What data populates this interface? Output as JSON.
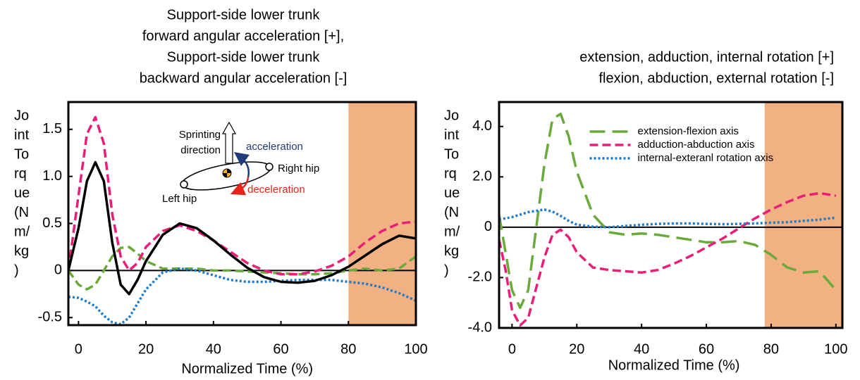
{
  "chart_data": [
    {
      "type": "line",
      "title": [
        "Support-side lower trunk",
        "forward angular acceleration [+],",
        "Support-side lower trunk",
        "backward angular acceleration [-]"
      ],
      "ylabel": [
        "Jo",
        "int",
        "To",
        "rq",
        "ue",
        "(N",
        "m/",
        "kg",
        ")"
      ],
      "xlabel": "Normalized Time (%)",
      "xlim": [
        -3,
        100
      ],
      "ylim": [
        -0.58,
        1.79
      ],
      "xticks": [
        0,
        20,
        40,
        60,
        80,
        100
      ],
      "yticks": [
        1.5,
        {
          "value": 1,
          "label": "1.0"
        },
        0.5,
        0,
        -0.5
      ],
      "shaded_xrange": [
        80,
        100
      ],
      "shade_color": "#f2b183",
      "annotations": [
        "Sprinting",
        "direction",
        "acceleration",
        "Right hip",
        "deceleration",
        "Left hip"
      ],
      "x": [
        -3,
        0,
        2.5,
        5,
        7.5,
        10,
        12.5,
        15,
        17.5,
        20,
        25,
        30,
        35,
        40,
        45,
        50,
        55,
        60,
        65,
        70,
        75,
        80,
        85,
        90,
        95,
        100
      ],
      "series": [
        {
          "color": "#6aaa3a",
          "linestyle": "dashed",
          "values": [
            0.0,
            -0.15,
            -0.2,
            -0.15,
            0.0,
            0.15,
            0.24,
            0.25,
            0.18,
            0.1,
            0.02,
            0.02,
            0.02,
            0.0,
            0.0,
            -0.01,
            -0.02,
            -0.03,
            -0.04,
            -0.04,
            -0.03,
            0.0,
            0.02,
            0.0,
            0.02,
            0.15
          ]
        },
        {
          "color": "#1e7bc8",
          "linestyle": "dotted",
          "values": [
            -0.28,
            -0.29,
            -0.33,
            -0.38,
            -0.48,
            -0.55,
            -0.57,
            -0.5,
            -0.35,
            -0.2,
            -0.02,
            0.02,
            0.0,
            -0.05,
            -0.1,
            -0.12,
            -0.12,
            -0.11,
            -0.1,
            -0.1,
            -0.1,
            -0.12,
            -0.14,
            -0.18,
            -0.24,
            -0.32
          ]
        },
        {
          "color": "#e91e78",
          "linestyle": "dashed",
          "values": [
            0.0,
            0.8,
            1.45,
            1.63,
            1.35,
            0.6,
            0.15,
            0.0,
            0.08,
            0.25,
            0.42,
            0.48,
            0.42,
            0.32,
            0.2,
            0.08,
            0.0,
            -0.04,
            -0.04,
            -0.01,
            0.05,
            0.15,
            0.3,
            0.42,
            0.5,
            0.52
          ]
        },
        {
          "color": "#000000",
          "linestyle": "solid",
          "values": [
            0.0,
            0.45,
            0.95,
            1.15,
            0.95,
            0.3,
            -0.15,
            -0.25,
            -0.1,
            0.1,
            0.38,
            0.5,
            0.45,
            0.32,
            0.17,
            0.03,
            -0.07,
            -0.12,
            -0.13,
            -0.11,
            -0.05,
            0.04,
            0.16,
            0.28,
            0.37,
            0.34
          ]
        }
      ]
    },
    {
      "type": "line",
      "title": [
        "extension, adduction,  internal rotation [+]",
        "flexion, abduction, external rotation [-]"
      ],
      "ylabel": [
        "Jo",
        "int",
        "To",
        "rq",
        "ue",
        "(N",
        "m/",
        "kg",
        ")"
      ],
      "xlabel": "Normalized Time (%)",
      "xlim": [
        -4,
        102
      ],
      "ylim": [
        -4,
        4.97
      ],
      "xticks": [
        0,
        20,
        40,
        60,
        80,
        100
      ],
      "yticks": [
        {
          "value": 4,
          "label": "4.0"
        },
        {
          "value": 2,
          "label": "2.0"
        },
        0,
        {
          "value": -2,
          "label": "-2.0"
        },
        {
          "value": -4,
          "label": "-4.0"
        }
      ],
      "shaded_xrange": [
        78,
        102
      ],
      "shade_color": "#f2b183",
      "legend": "upper center",
      "x": [
        -4,
        -2,
        0,
        2.5,
        5,
        7.5,
        10,
        12.5,
        15,
        17.5,
        20,
        25,
        30,
        35,
        40,
        45,
        50,
        55,
        60,
        65,
        70,
        75,
        80,
        85,
        90,
        95,
        100
      ],
      "series": [
        {
          "name": "extension-flexion axis",
          "color": "#6aaa3a",
          "linestyle": "longdash",
          "values": [
            0.5,
            -1.0,
            -2.5,
            -3.2,
            -2.5,
            0.0,
            2.5,
            4.3,
            4.5,
            3.6,
            2.2,
            0.5,
            -0.2,
            -0.3,
            -0.25,
            -0.3,
            -0.4,
            -0.5,
            -0.6,
            -0.6,
            -0.55,
            -0.7,
            -1.1,
            -1.6,
            -1.8,
            -1.75,
            -2.5
          ]
        },
        {
          "name": "adduction-abduction axis",
          "color": "#e91e78",
          "linestyle": "dashed",
          "values": [
            -0.5,
            -1.7,
            -3.3,
            -3.9,
            -3.6,
            -2.4,
            -1.2,
            -0.3,
            -0.1,
            -0.4,
            -1.0,
            -1.6,
            -1.7,
            -1.75,
            -1.8,
            -1.7,
            -1.45,
            -1.15,
            -0.8,
            -0.45,
            -0.05,
            0.35,
            0.7,
            1.0,
            1.25,
            1.35,
            1.25
          ]
        },
        {
          "name": "internal-exteranl rotation axis",
          "color": "#1e7bc8",
          "linestyle": "dotted",
          "values": [
            0.3,
            0.35,
            0.4,
            0.5,
            0.6,
            0.65,
            0.7,
            0.62,
            0.45,
            0.25,
            0.1,
            0.02,
            0.0,
            0.05,
            0.1,
            0.13,
            0.15,
            0.15,
            0.13,
            0.12,
            0.13,
            0.15,
            0.18,
            0.2,
            0.25,
            0.3,
            0.38
          ]
        }
      ]
    }
  ]
}
